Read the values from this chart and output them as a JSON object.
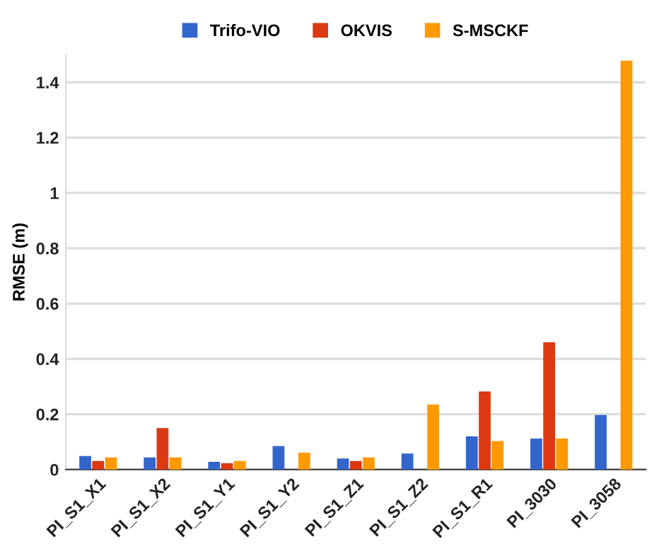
{
  "chart_data": {
    "type": "bar",
    "ylabel": "RMSE (m)",
    "categories": [
      "PI_S1_X1",
      "PI_S1_X2",
      "PI_S1_Y1",
      "PI_S1_Y2",
      "PI_S1_Z1",
      "PI_S1_Z2",
      "PI_S1_R1",
      "PI_3030",
      "PI_3058"
    ],
    "series": [
      {
        "name": "Trifo-VIO",
        "color": "#3366cc",
        "values": [
          0.049,
          0.044,
          0.028,
          0.085,
          0.04,
          0.058,
          0.12,
          0.112,
          0.197
        ]
      },
      {
        "name": "OKVIS",
        "color": "#dc3912",
        "values": [
          0.031,
          0.15,
          0.023,
          null,
          0.031,
          null,
          0.282,
          0.46,
          null
        ]
      },
      {
        "name": "S-MSCKF",
        "color": "#ff9900",
        "values": [
          0.044,
          0.044,
          0.031,
          0.061,
          0.044,
          0.235,
          0.103,
          0.112,
          1.478
        ]
      }
    ],
    "ylim": [
      0,
      1.5
    ],
    "yticks": [
      0,
      0.2,
      0.4,
      0.6,
      0.8,
      1,
      1.2,
      1.4
    ],
    "grid": "y",
    "legend": "top"
  }
}
